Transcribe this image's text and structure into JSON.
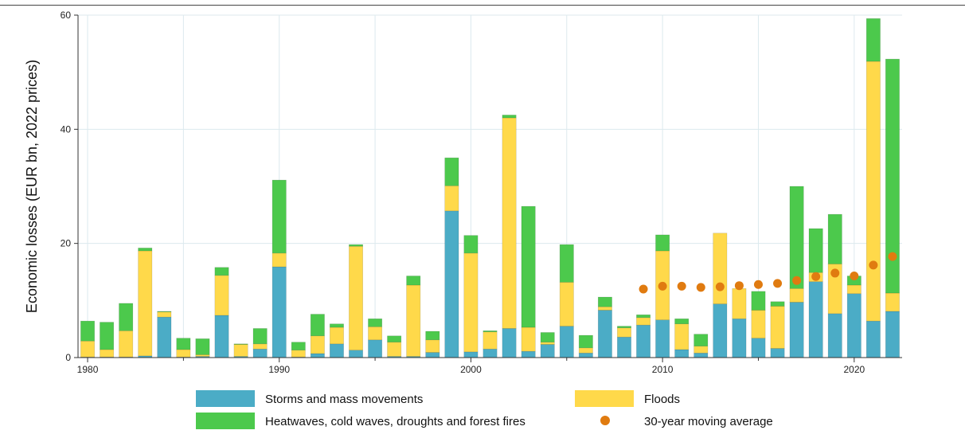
{
  "chart_data": {
    "type": "bar",
    "stacked": true,
    "ylabel": "Economic losses (EUR bn, 2022 prices)",
    "xlabel": "",
    "ylim": [
      0,
      60
    ],
    "y_ticks": [
      "0",
      "20",
      "40",
      "60"
    ],
    "x_ticks": [
      "1980",
      "1990",
      "2000",
      "2010",
      "2020"
    ],
    "grid": true,
    "legend_position": "bottom",
    "colors": {
      "storms": "#4bacc6",
      "floods": "#ffd94a",
      "heat": "#4cc94c",
      "average": "#e07b10"
    },
    "years": [
      1980,
      1981,
      1982,
      1983,
      1984,
      1985,
      1986,
      1987,
      1988,
      1989,
      1990,
      1991,
      1992,
      1993,
      1994,
      1995,
      1996,
      1997,
      1998,
      1999,
      2000,
      2001,
      2002,
      2003,
      2004,
      2005,
      2006,
      2007,
      2008,
      2009,
      2010,
      2011,
      2012,
      2013,
      2014,
      2015,
      2016,
      2017,
      2018,
      2019,
      2020,
      2021,
      2022
    ],
    "series": [
      {
        "name": "Storms and mass movements",
        "key": "storms",
        "values": [
          0.1,
          0.1,
          0.1,
          0.3,
          7.1,
          0.1,
          0.2,
          7.4,
          0.2,
          1.5,
          15.9,
          0.1,
          0.7,
          2.4,
          1.3,
          3.1,
          0.2,
          0.2,
          0.9,
          25.7,
          1.0,
          1.5,
          5.1,
          1.1,
          2.3,
          5.5,
          0.8,
          8.3,
          3.6,
          5.7,
          6.6,
          1.4,
          0.8,
          9.4,
          6.8,
          3.4,
          1.6,
          9.7,
          13.3,
          7.7,
          11.2,
          6.4,
          8.1
        ]
      },
      {
        "name": "Floods",
        "key": "floods",
        "values": [
          2.8,
          1.3,
          4.6,
          18.4,
          0.9,
          1.3,
          0.3,
          7.0,
          2.1,
          0.9,
          2.4,
          1.2,
          3.1,
          2.9,
          18.2,
          2.3,
          2.5,
          12.5,
          2.2,
          4.4,
          17.3,
          3.0,
          36.9,
          4.2,
          0.4,
          7.7,
          0.9,
          0.6,
          1.6,
          1.3,
          12.1,
          4.5,
          1.2,
          12.4,
          5.3,
          4.9,
          7.4,
          2.4,
          1.6,
          8.7,
          1.5,
          45.5,
          3.2
        ]
      },
      {
        "name": "Heatwaves, cold waves, droughts and forest fires",
        "key": "heat",
        "values": [
          3.5,
          4.8,
          4.8,
          0.5,
          0.1,
          2.0,
          2.8,
          1.4,
          0.1,
          2.7,
          12.8,
          1.4,
          3.8,
          0.6,
          0.3,
          1.4,
          1.1,
          1.6,
          1.5,
          4.9,
          3.1,
          0.2,
          0.5,
          21.2,
          1.7,
          6.6,
          2.2,
          1.7,
          0.3,
          0.5,
          2.8,
          0.9,
          2.1,
          0.0,
          0.0,
          3.3,
          0.8,
          17.9,
          7.7,
          8.7,
          1.6,
          7.5,
          41.0
        ]
      },
      {
        "name": "30-year moving average",
        "key": "average",
        "x": [
          2009,
          2010,
          2011,
          2012,
          2013,
          2014,
          2015,
          2016,
          2017,
          2018,
          2019,
          2020,
          2021,
          2022
        ],
        "values": [
          12.0,
          12.5,
          12.5,
          12.3,
          12.4,
          12.6,
          12.8,
          13.0,
          13.5,
          14.2,
          14.8,
          14.3,
          16.2,
          17.7
        ]
      }
    ]
  },
  "legend": {
    "storms": "Storms and mass movements",
    "floods": "Floods",
    "heat": "Heatwaves, cold waves, droughts and forest fires",
    "average": "30-year moving average"
  }
}
